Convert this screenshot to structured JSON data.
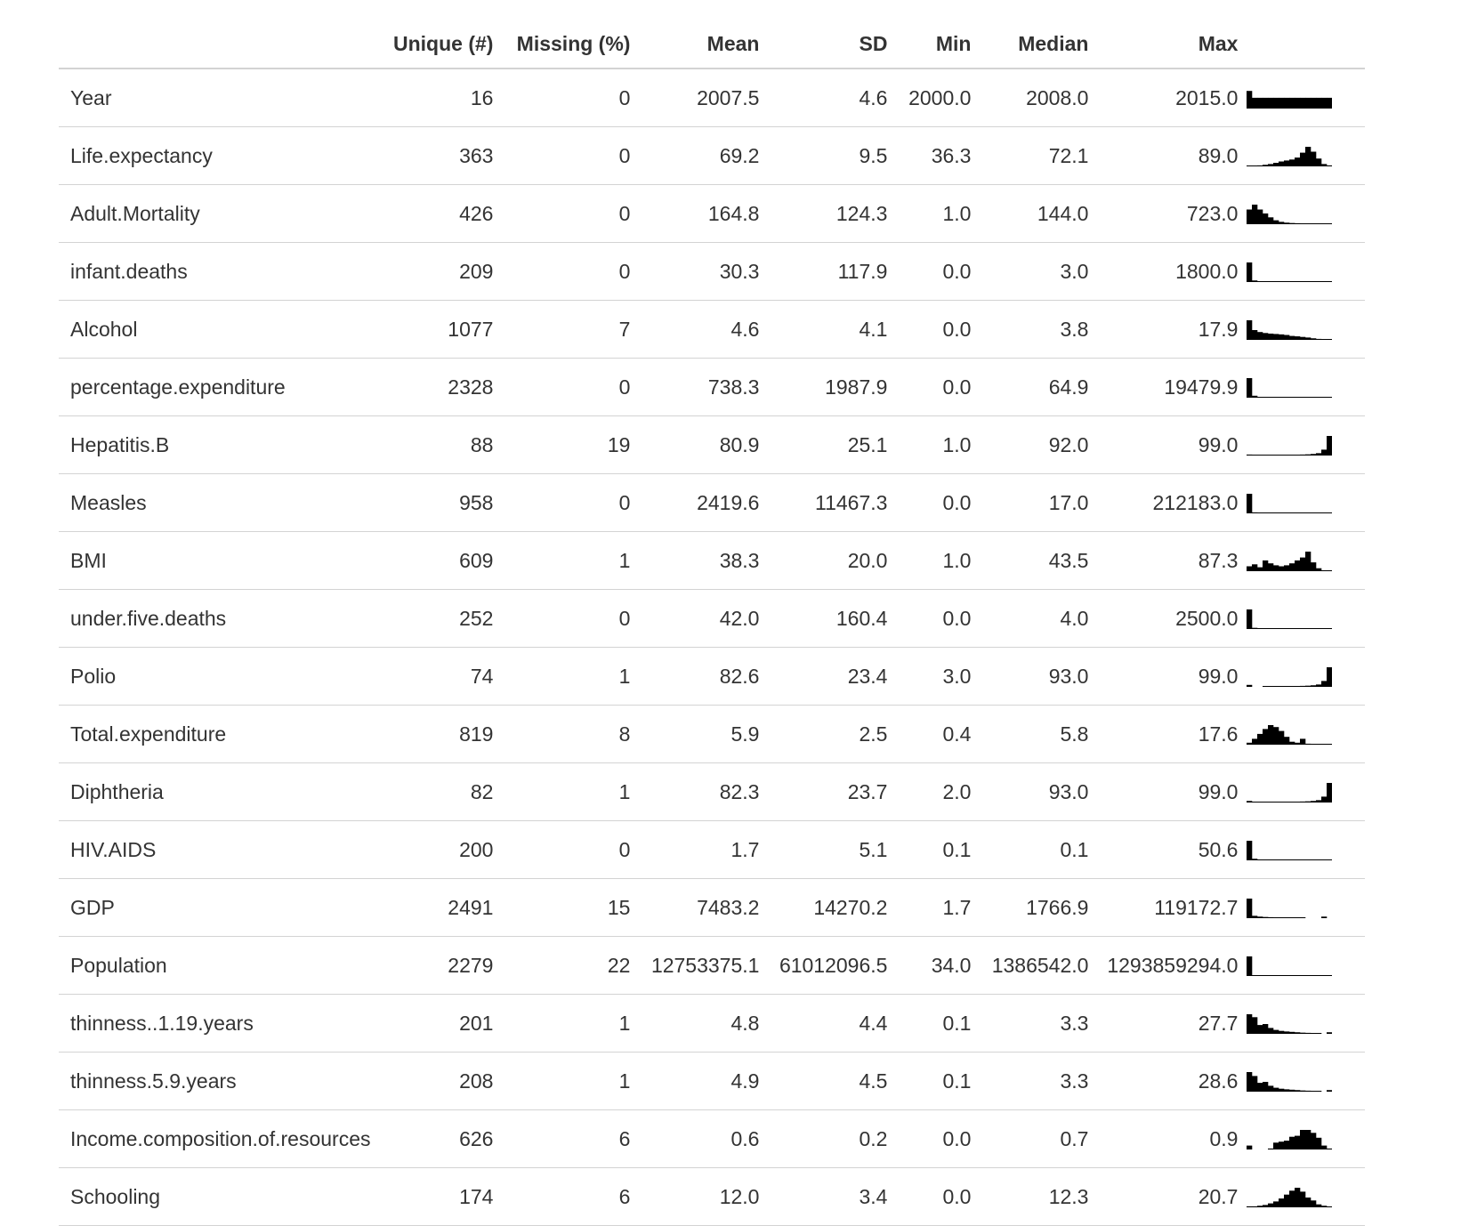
{
  "columns": [
    "",
    "Unique (#)",
    "Missing (%)",
    "Mean",
    "SD",
    "Min",
    "Median",
    "Max",
    ""
  ],
  "rows": [
    {
      "name": "Year",
      "unique": "16",
      "missing": "0",
      "mean": "2007.5",
      "sd": "4.6",
      "min": "2000.0",
      "median": "2008.0",
      "max": "2015.0",
      "hist": [
        0.9,
        0.55,
        0.55,
        0.55,
        0.55,
        0.55,
        0.55,
        0.55,
        0.55,
        0.55,
        0.55,
        0.55,
        0.55,
        0.55,
        0.55,
        0.55
      ]
    },
    {
      "name": "Life.expectancy",
      "unique": "363",
      "missing": "0",
      "mean": "69.2",
      "sd": "9.5",
      "min": "36.3",
      "median": "72.1",
      "max": "89.0",
      "hist": [
        0.02,
        0.03,
        0.05,
        0.08,
        0.12,
        0.18,
        0.25,
        0.3,
        0.35,
        0.45,
        0.7,
        1.0,
        0.75,
        0.4,
        0.12,
        0.05
      ]
    },
    {
      "name": "Adult.Mortality",
      "unique": "426",
      "missing": "0",
      "mean": "164.8",
      "sd": "124.3",
      "min": "1.0",
      "median": "144.0",
      "max": "723.0",
      "hist": [
        0.75,
        1.0,
        0.75,
        0.55,
        0.35,
        0.2,
        0.12,
        0.08,
        0.06,
        0.05,
        0.04,
        0.03,
        0.02,
        0.02,
        0.01,
        0.01
      ]
    },
    {
      "name": "infant.deaths",
      "unique": "209",
      "missing": "0",
      "mean": "30.3",
      "sd": "117.9",
      "min": "0.0",
      "median": "3.0",
      "max": "1800.0",
      "hist": [
        1.0,
        0.08,
        0.03,
        0.02,
        0.01,
        0.01,
        0.01,
        0.01,
        0.01,
        0.01,
        0.01,
        0.01,
        0.01,
        0.01,
        0.01,
        0.01
      ]
    },
    {
      "name": "Alcohol",
      "unique": "1077",
      "missing": "7",
      "mean": "4.6",
      "sd": "4.1",
      "min": "0.0",
      "median": "3.8",
      "max": "17.9",
      "hist": [
        1.0,
        0.5,
        0.4,
        0.35,
        0.32,
        0.3,
        0.28,
        0.25,
        0.2,
        0.18,
        0.15,
        0.12,
        0.08,
        0.05,
        0.03,
        0.02
      ]
    },
    {
      "name": "percentage.expenditure",
      "unique": "2328",
      "missing": "0",
      "mean": "738.3",
      "sd": "1987.9",
      "min": "0.0",
      "median": "64.9",
      "max": "19479.9",
      "hist": [
        1.0,
        0.1,
        0.04,
        0.02,
        0.02,
        0.01,
        0.01,
        0.01,
        0.01,
        0.01,
        0.01,
        0.01,
        0.01,
        0.01,
        0.01,
        0.01
      ]
    },
    {
      "name": "Hepatitis.B",
      "unique": "88",
      "missing": "19",
      "mean": "80.9",
      "sd": "25.1",
      "min": "1.0",
      "median": "92.0",
      "max": "99.0",
      "hist": [
        0.05,
        0.03,
        0.03,
        0.02,
        0.02,
        0.02,
        0.02,
        0.03,
        0.03,
        0.04,
        0.05,
        0.06,
        0.08,
        0.12,
        0.3,
        1.0
      ]
    },
    {
      "name": "Measles",
      "unique": "958",
      "missing": "0",
      "mean": "2419.6",
      "sd": "11467.3",
      "min": "0.0",
      "median": "17.0",
      "max": "212183.0",
      "hist": [
        1.0,
        0.05,
        0.02,
        0.01,
        0.01,
        0.01,
        0.01,
        0.01,
        0.01,
        0.01,
        0.01,
        0.01,
        0.01,
        0.01,
        0.01,
        0.01
      ]
    },
    {
      "name": "BMI",
      "unique": "609",
      "missing": "1",
      "mean": "38.3",
      "sd": "20.0",
      "min": "1.0",
      "median": "43.5",
      "max": "87.3",
      "hist": [
        0.25,
        0.35,
        0.2,
        0.55,
        0.4,
        0.3,
        0.25,
        0.3,
        0.4,
        0.55,
        0.7,
        1.0,
        0.45,
        0.15,
        0.03,
        0.02
      ]
    },
    {
      "name": "under.five.deaths",
      "unique": "252",
      "missing": "0",
      "mean": "42.0",
      "sd": "160.4",
      "min": "0.0",
      "median": "4.0",
      "max": "2500.0",
      "hist": [
        1.0,
        0.06,
        0.03,
        0.02,
        0.02,
        0.02,
        0.02,
        0.02,
        0.02,
        0.02,
        0.02,
        0.02,
        0.02,
        0.02,
        0.02,
        0.02
      ]
    },
    {
      "name": "Polio",
      "unique": "74",
      "missing": "1",
      "mean": "82.6",
      "sd": "23.4",
      "min": "3.0",
      "median": "93.0",
      "max": "99.0",
      "hist": [
        0.1,
        0.0,
        0.0,
        0.02,
        0.02,
        0.02,
        0.02,
        0.03,
        0.03,
        0.04,
        0.05,
        0.06,
        0.08,
        0.12,
        0.3,
        1.0
      ]
    },
    {
      "name": "Total.expenditure",
      "unique": "819",
      "missing": "8",
      "mean": "5.9",
      "sd": "2.5",
      "min": "0.4",
      "median": "5.8",
      "max": "17.6",
      "hist": [
        0.1,
        0.3,
        0.55,
        0.8,
        1.0,
        0.9,
        0.7,
        0.4,
        0.15,
        0.1,
        0.3,
        0.05,
        0.03,
        0.02,
        0.01,
        0.01
      ]
    },
    {
      "name": "Diphtheria",
      "unique": "82",
      "missing": "1",
      "mean": "82.3",
      "sd": "23.7",
      "min": "2.0",
      "median": "93.0",
      "max": "99.0",
      "hist": [
        0.08,
        0.03,
        0.02,
        0.02,
        0.02,
        0.02,
        0.02,
        0.03,
        0.03,
        0.04,
        0.05,
        0.06,
        0.08,
        0.12,
        0.3,
        1.0
      ]
    },
    {
      "name": "HIV.AIDS",
      "unique": "200",
      "missing": "0",
      "mean": "1.7",
      "sd": "5.1",
      "min": "0.1",
      "median": "0.1",
      "max": "50.6",
      "hist": [
        1.0,
        0.08,
        0.03,
        0.02,
        0.01,
        0.01,
        0.01,
        0.01,
        0.01,
        0.01,
        0.01,
        0.01,
        0.01,
        0.01,
        0.01,
        0.01
      ]
    },
    {
      "name": "GDP",
      "unique": "2491",
      "missing": "15",
      "mean": "7483.2",
      "sd": "14270.2",
      "min": "1.7",
      "median": "1766.9",
      "max": "119172.7",
      "hist": [
        1.0,
        0.12,
        0.08,
        0.06,
        0.05,
        0.04,
        0.03,
        0.03,
        0.02,
        0.02,
        0.02,
        0.0,
        0.0,
        0.0,
        0.08,
        0.0
      ]
    },
    {
      "name": "Population",
      "unique": "2279",
      "missing": "22",
      "mean": "12753375.1",
      "sd": "61012096.5",
      "min": "34.0",
      "median": "1386542.0",
      "max": "1293859294.0",
      "hist": [
        1.0,
        0.02,
        0.01,
        0.01,
        0.01,
        0.01,
        0.01,
        0.01,
        0.01,
        0.01,
        0.01,
        0.01,
        0.01,
        0.01,
        0.01,
        0.01
      ]
    },
    {
      "name": "thinness..1.19.years",
      "unique": "201",
      "missing": "1",
      "mean": "4.8",
      "sd": "4.4",
      "min": "0.1",
      "median": "3.3",
      "max": "27.7",
      "hist": [
        1.0,
        0.85,
        0.45,
        0.5,
        0.3,
        0.2,
        0.15,
        0.12,
        0.1,
        0.08,
        0.06,
        0.05,
        0.04,
        0.03,
        0.0,
        0.08
      ]
    },
    {
      "name": "thinness.5.9.years",
      "unique": "208",
      "missing": "1",
      "mean": "4.9",
      "sd": "4.5",
      "min": "0.1",
      "median": "3.3",
      "max": "28.6",
      "hist": [
        1.0,
        0.8,
        0.45,
        0.5,
        0.3,
        0.2,
        0.15,
        0.12,
        0.1,
        0.08,
        0.06,
        0.05,
        0.04,
        0.03,
        0.0,
        0.08
      ]
    },
    {
      "name": "Income.composition.of.resources",
      "unique": "626",
      "missing": "6",
      "mean": "0.6",
      "sd": "0.2",
      "min": "0.0",
      "median": "0.7",
      "max": "0.9",
      "hist": [
        0.2,
        0.0,
        0.0,
        0.0,
        0.05,
        0.35,
        0.4,
        0.45,
        0.65,
        0.7,
        1.0,
        1.0,
        0.85,
        0.6,
        0.2,
        0.05
      ]
    },
    {
      "name": "Schooling",
      "unique": "174",
      "missing": "6",
      "mean": "12.0",
      "sd": "3.4",
      "min": "0.0",
      "median": "12.3",
      "max": "20.7",
      "hist": [
        0.05,
        0.05,
        0.08,
        0.12,
        0.2,
        0.3,
        0.45,
        0.65,
        0.85,
        1.0,
        0.8,
        0.5,
        0.35,
        0.15,
        0.08,
        0.03
      ]
    }
  ]
}
